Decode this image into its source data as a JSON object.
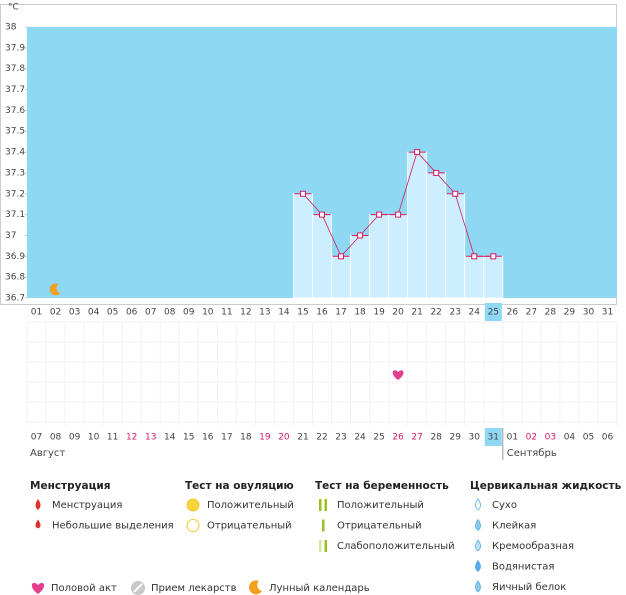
{
  "chart_data": {
    "type": "bar-line",
    "unit": "°C",
    "categories": [
      "01",
      "02",
      "03",
      "04",
      "05",
      "06",
      "07",
      "08",
      "09",
      "10",
      "11",
      "12",
      "13",
      "14",
      "15",
      "16",
      "17",
      "18",
      "19",
      "20",
      "21",
      "22",
      "23",
      "24",
      "25",
      "26",
      "27",
      "28",
      "29",
      "30",
      "31"
    ],
    "dates": [
      "07",
      "08",
      "09",
      "10",
      "11",
      "12",
      "13",
      "14",
      "15",
      "16",
      "17",
      "18",
      "19",
      "20",
      "21",
      "22",
      "23",
      "24",
      "25",
      "26",
      "27",
      "28",
      "29",
      "30",
      "31",
      "01",
      "02",
      "03",
      "04",
      "05",
      "06"
    ],
    "date_colors": [
      "#444",
      "#444",
      "#444",
      "#444",
      "#444",
      "#d81b60",
      "#d81b60",
      "#444",
      "#444",
      "#444",
      "#444",
      "#444",
      "#d81b60",
      "#d81b60",
      "#444",
      "#444",
      "#444",
      "#444",
      "#444",
      "#d81b60",
      "#d81b60",
      "#444",
      "#444",
      "#444",
      "#444",
      "#444",
      "#d81b60",
      "#d81b60",
      "#444",
      "#444",
      "#444"
    ],
    "months": [
      "Август",
      "Сентябрь"
    ],
    "values": [
      null,
      null,
      null,
      null,
      null,
      null,
      null,
      null,
      null,
      null,
      null,
      null,
      null,
      null,
      37.2,
      37.1,
      36.9,
      37.0,
      37.1,
      37.1,
      37.4,
      37.3,
      37.2,
      36.9,
      36.9,
      null,
      null,
      null,
      null,
      null,
      null
    ],
    "ylim": [
      36.7,
      38
    ],
    "yticks": [
      36.7,
      36.8,
      36.9,
      37,
      37.1,
      37.2,
      37.3,
      37.4,
      37.5,
      37.6,
      37.7,
      37.8,
      37.9,
      38
    ],
    "color": "#d81b60",
    "bar_color": "#cdeefe",
    "background": "#8ed8f3",
    "today_index": 24,
    "moon_index": 1,
    "heart_index": 19
  },
  "legend": [
    {
      "title": "Менструация",
      "items": [
        "Менструация",
        "Небольшие выделения"
      ]
    },
    {
      "title": "Тест на овуляцию",
      "items": [
        "Положительный",
        "Отрицательный"
      ]
    },
    {
      "title": "Тест на беременность",
      "items": [
        "Положительный",
        "Отрицательный",
        "Слабоположительный"
      ]
    },
    {
      "title": "Цервикальная жидкость",
      "items": [
        "Сухо",
        "Клейкая",
        "Кремообразная",
        "Водянистая",
        "Яичный белок"
      ]
    }
  ],
  "footer_legend": [
    "Половой акт",
    "Прием лекарств",
    "Лунный календарь"
  ]
}
